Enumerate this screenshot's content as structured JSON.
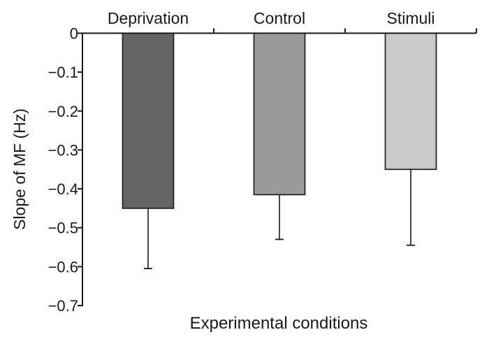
{
  "chart_data": {
    "type": "bar",
    "title": "",
    "xlabel": "Experimental conditions",
    "ylabel": "Slope of MF (Hz)",
    "categories": [
      "Deprivation",
      "Control",
      "Stimuli"
    ],
    "values": [
      -0.45,
      -0.415,
      -0.35
    ],
    "error_lower": [
      0.155,
      0.115,
      0.195
    ],
    "whisker_ends": [
      -0.605,
      -0.53,
      -0.545
    ],
    "ylim": [
      -0.7,
      0
    ],
    "ytick_values": [
      0,
      -0.1,
      -0.2,
      -0.3,
      -0.4,
      -0.5,
      -0.6,
      -0.7
    ],
    "ytick_labels": [
      "0",
      "−0.1",
      "−0.2",
      "−0.3",
      "−0.4",
      "−0.5",
      "−0.6",
      "−0.7"
    ],
    "bar_colors": [
      "#646464",
      "#9a9a9a",
      "#cbcbcb"
    ],
    "bar_border_color": "#262626",
    "axis_color": "#1a1a1a",
    "text_color": "#1a1a1a",
    "grid": false,
    "legend": null,
    "orientation": "vertical",
    "error_direction": "lower-only"
  }
}
